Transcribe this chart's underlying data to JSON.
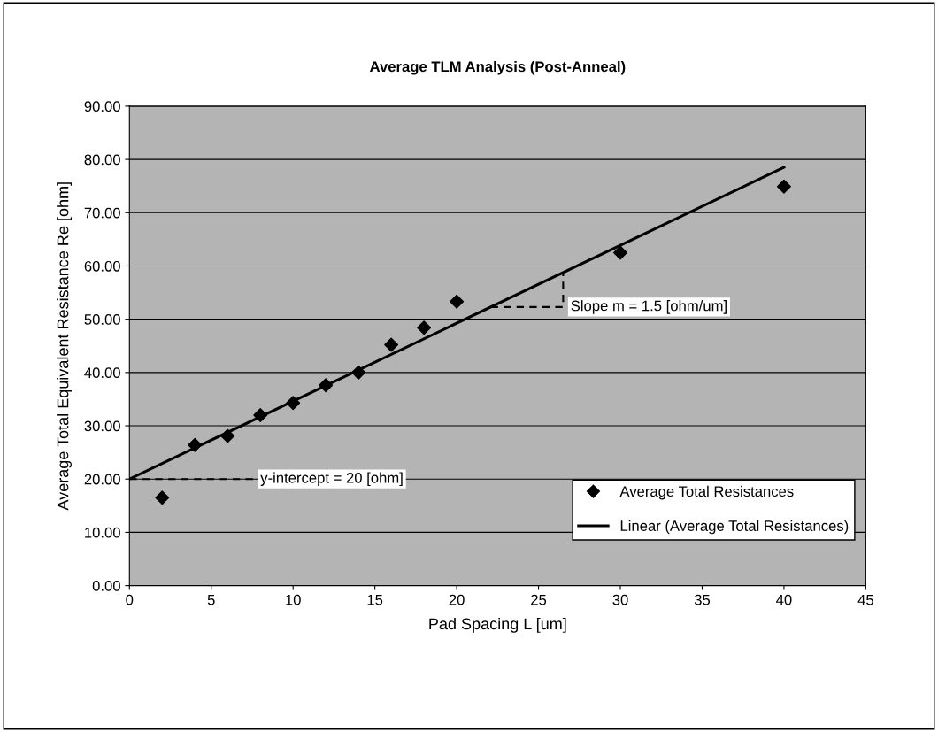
{
  "chart_data": {
    "type": "scatter",
    "title": "Average TLM Analysis (Post-Anneal)",
    "xlabel": "Pad Spacing L [um]",
    "ylabel": "Average Total Equivalent Resistance Re [ohm]",
    "x": [
      2,
      4,
      6,
      8,
      10,
      12,
      14,
      16,
      18,
      20,
      30,
      40
    ],
    "series": [
      {
        "name": "Average Total Resistances",
        "marker": "diamond",
        "color": "#000000",
        "values": [
          16.5,
          26.4,
          28.1,
          32.0,
          34.3,
          37.6,
          40.0,
          45.2,
          48.4,
          53.3,
          62.5,
          74.9
        ]
      },
      {
        "name": "Linear (Average Total Resistances)",
        "type": "line",
        "marker": "none",
        "line_style": "solid",
        "color": "#000000",
        "x": [
          0,
          40
        ],
        "values": [
          20,
          78.5
        ]
      }
    ],
    "xlim": [
      0,
      45
    ],
    "xticks": [
      0,
      5,
      10,
      15,
      20,
      25,
      30,
      35,
      40,
      45
    ],
    "ylim": [
      0,
      90
    ],
    "yticks": [
      {
        "value": 0,
        "label": "0.00"
      },
      {
        "value": 10,
        "label": "10.00"
      },
      {
        "value": 20,
        "label": "20.00"
      },
      {
        "value": 30,
        "label": "30.00"
      },
      {
        "value": 40,
        "label": "40.00"
      },
      {
        "value": 50,
        "label": "50.00"
      },
      {
        "value": 60,
        "label": "60.00"
      },
      {
        "value": 70,
        "label": "70.00"
      },
      {
        "value": 80,
        "label": "80.00"
      },
      {
        "value": 90,
        "label": "90.00"
      }
    ],
    "grid": "y",
    "legend": "bottom right",
    "annotations": [
      {
        "text": "y-intercept = 20 [ohm]",
        "x": 0,
        "y": 20
      },
      "Slope m = 1.5 [ohm/um]"
    ]
  }
}
